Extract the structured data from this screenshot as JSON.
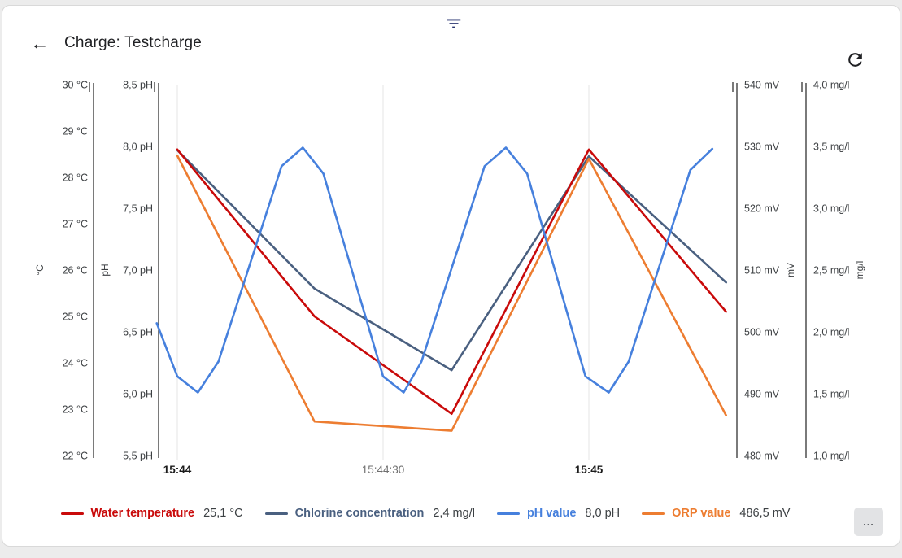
{
  "header": {
    "title": "Charge: Testcharge"
  },
  "icons": {
    "back": "←"
  },
  "more_button_label": "...",
  "chart_data": {
    "type": "line",
    "title": "Charge: Testcharge",
    "x_axis": {
      "unit": "time",
      "gridlines": true,
      "ticks": [
        {
          "t": 0,
          "label": "15:44",
          "bold": true
        },
        {
          "t": 30,
          "label": "15:44:30",
          "bold": false
        },
        {
          "t": 60,
          "label": "15:45",
          "bold": true
        }
      ]
    },
    "axes": [
      {
        "id": "temp",
        "title": "°C",
        "side": "left",
        "range": [
          22,
          30
        ],
        "tick_labels": [
          "30 °C",
          "29 °C",
          "28 °C",
          "27 °C",
          "26 °C",
          "25 °C",
          "24 °C",
          "23 °C",
          "22 °C"
        ]
      },
      {
        "id": "ph",
        "title": "pH",
        "side": "left",
        "range": [
          5.5,
          8.5
        ],
        "tick_labels": [
          "8,5 pH",
          "8,0 pH",
          "7,5 pH",
          "7,0 pH",
          "6,5 pH",
          "6,0 pH",
          "5,5 pH"
        ]
      },
      {
        "id": "mv",
        "title": "mV",
        "side": "right",
        "range": [
          480,
          540
        ],
        "tick_labels": [
          "540 mV",
          "530 mV",
          "520 mV",
          "510 mV",
          "500 mV",
          "490 mV",
          "480 mV"
        ]
      },
      {
        "id": "mgl",
        "title": "mg/l",
        "side": "right",
        "range": [
          1.0,
          4.0
        ],
        "tick_labels": [
          "4,0 mg/l",
          "3,5 mg/l",
          "3,0 mg/l",
          "2,5 mg/l",
          "2,0 mg/l",
          "1,5 mg/l",
          "1,0 mg/l"
        ]
      }
    ],
    "series": [
      {
        "id": "water_temperature",
        "name": "Water temperature",
        "axis": "temp",
        "color": "#c90a0a",
        "current_value": "25,1 °C",
        "unit": "°C",
        "t": [
          0,
          20,
          40,
          60,
          80
        ],
        "values": [
          28.6,
          25.0,
          22.9,
          28.6,
          25.1
        ]
      },
      {
        "id": "chlorine_concentration",
        "name": "Chlorine concentration",
        "axis": "mgl",
        "color": "#4a6080",
        "current_value": "2,4 mg/l",
        "unit": "mg/l",
        "t": [
          0,
          20,
          40,
          60,
          80
        ],
        "values": [
          3.47,
          2.35,
          1.69,
          3.42,
          2.4
        ]
      },
      {
        "id": "ph_value",
        "name": "pH value",
        "axis": "ph",
        "color": "#4680dd",
        "current_value": "8,0 pH",
        "unit": "pH",
        "t": [
          -3,
          0,
          3,
          6,
          15.2,
          18.3,
          21.3,
          30,
          33,
          35.6,
          44.8,
          47.9,
          51,
          59.5,
          62.9,
          65.8,
          74.8,
          78
        ],
        "values": [
          6.57,
          6.14,
          6.01,
          6.26,
          7.84,
          7.99,
          7.78,
          6.14,
          6.01,
          6.26,
          7.84,
          7.99,
          7.78,
          6.14,
          6.01,
          6.26,
          7.81,
          7.98
        ]
      },
      {
        "id": "orp_value",
        "name": "ORP value",
        "axis": "mv",
        "color": "#ed7d31",
        "current_value": "486,5 mV",
        "unit": "mV",
        "t": [
          0,
          20,
          40,
          60,
          80
        ],
        "values": [
          528.5,
          485.5,
          484.0,
          528.0,
          486.5
        ]
      }
    ],
    "legend_position": "bottom"
  }
}
